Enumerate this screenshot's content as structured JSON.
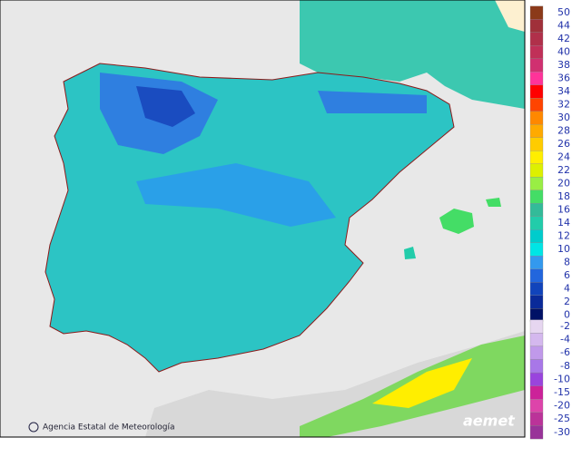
{
  "map": {
    "credit": "Agencia Estatal de Meteorología",
    "logo": "aemet",
    "legend": {
      "positive": {
        "values": [
          50,
          44,
          42,
          40,
          38,
          36,
          34,
          32,
          30,
          28,
          26,
          24,
          22,
          20,
          18,
          16,
          14,
          12,
          10,
          8,
          6,
          4,
          2,
          0
        ],
        "colors": [
          "#8b3a1a",
          "#a0303a",
          "#b0304a",
          "#c03058",
          "#d03070",
          "#ff3399",
          "#ff0000",
          "#ff4400",
          "#ff8800",
          "#ffaa00",
          "#ffcc00",
          "#ffee00",
          "#ddf000",
          "#99ee44",
          "#44dd66",
          "#33bb99",
          "#22ccaa",
          "#00cccc",
          "#00e5e5",
          "#3399ee",
          "#2266dd",
          "#1144bb",
          "#0a2a99",
          "#001166"
        ]
      },
      "negative": {
        "values": [
          -2,
          -4,
          -6,
          -8,
          -10,
          -15,
          -20,
          -25,
          -30
        ],
        "colors": [
          "#e6d6f0",
          "#d4b8ee",
          "#c099ea",
          "#a877e8",
          "#9944dd",
          "#cc2299",
          "#dd44aa",
          "#bb3399",
          "#993399"
        ]
      }
    }
  }
}
